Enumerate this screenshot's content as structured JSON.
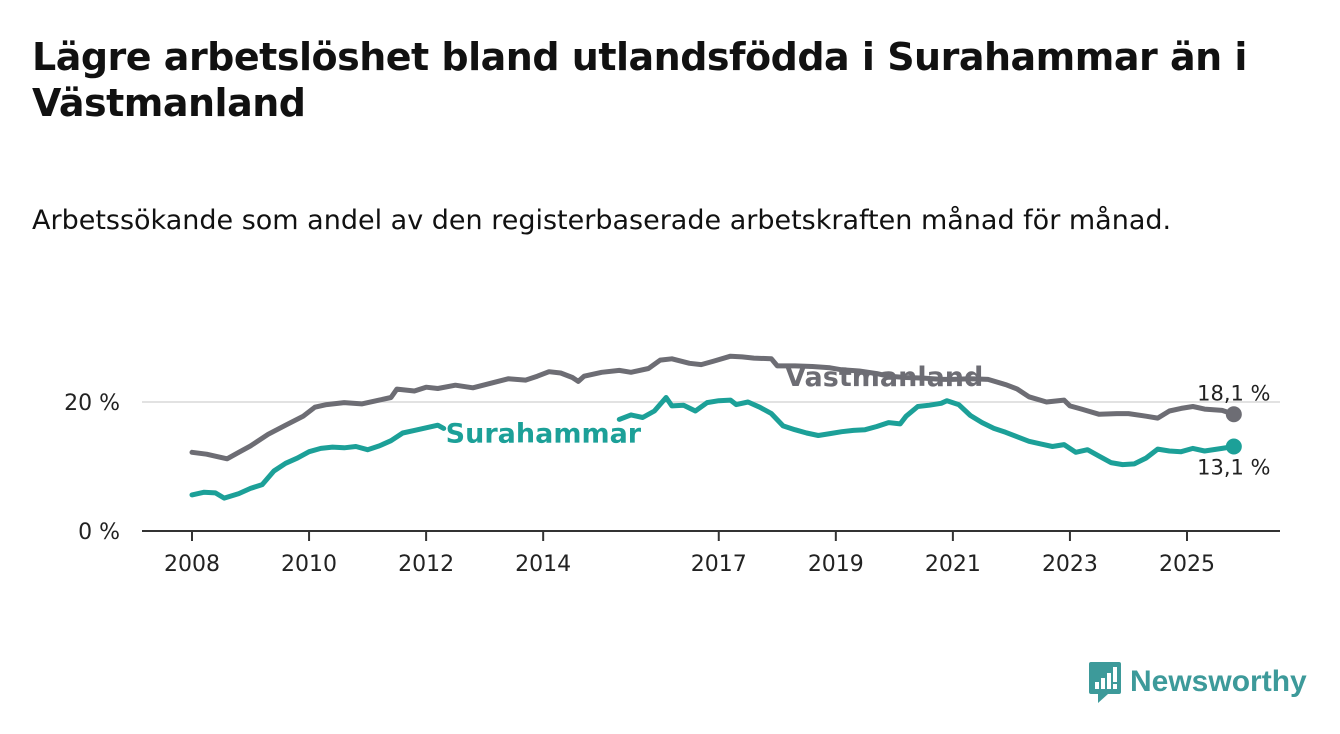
{
  "title": "Lägre arbetslöshet bland utlandsfödda i Surahammar än i Västmanland",
  "subtitle": "Arbetssökande som andel av den registerbaserade arbetskraften månad för månad.",
  "brand": {
    "name": "Newsworthy",
    "color": "#3d9a9a"
  },
  "chart_data": {
    "type": "line",
    "title": "Lägre arbetslöshet bland utlandsfödda i Surahammar än i Västmanland",
    "xlabel": "",
    "ylabel": "",
    "xlim": [
      2007.9,
      2026.5
    ],
    "ylim": [
      0,
      28
    ],
    "x_ticks": [
      {
        "value": 2008,
        "label": "2008"
      },
      {
        "value": 2010,
        "label": "2010"
      },
      {
        "value": 2012,
        "label": "2012"
      },
      {
        "value": 2014,
        "label": "2014"
      },
      {
        "value": 2017,
        "label": "2017"
      },
      {
        "value": 2019,
        "label": "2019"
      },
      {
        "value": 2021,
        "label": "2021"
      },
      {
        "value": 2023,
        "label": "2023"
      },
      {
        "value": 2025,
        "label": "2025"
      }
    ],
    "y_ticks": [
      {
        "value": 0,
        "label": "0 %"
      },
      {
        "value": 20,
        "label": "20 %"
      }
    ],
    "grid": true,
    "series": [
      {
        "name": "Västmanland",
        "color": "#6d6d74",
        "end_label": "18,1 %",
        "points": [
          [
            2008.0,
            12.2
          ],
          [
            2008.25,
            11.9
          ],
          [
            2008.4,
            11.6
          ],
          [
            2008.6,
            11.2
          ],
          [
            2008.8,
            12.2
          ],
          [
            2009.0,
            13.2
          ],
          [
            2009.3,
            15.0
          ],
          [
            2009.6,
            16.4
          ],
          [
            2009.9,
            17.8
          ],
          [
            2010.1,
            19.2
          ],
          [
            2010.3,
            19.6
          ],
          [
            2010.6,
            19.9
          ],
          [
            2010.9,
            19.7
          ],
          [
            2011.2,
            20.3
          ],
          [
            2011.4,
            20.7
          ],
          [
            2011.5,
            22.0
          ],
          [
            2011.8,
            21.7
          ],
          [
            2012.0,
            22.3
          ],
          [
            2012.2,
            22.1
          ],
          [
            2012.5,
            22.6
          ],
          [
            2012.8,
            22.2
          ],
          [
            2013.1,
            22.9
          ],
          [
            2013.4,
            23.6
          ],
          [
            2013.7,
            23.4
          ],
          [
            2013.9,
            24.0
          ],
          [
            2014.1,
            24.7
          ],
          [
            2014.3,
            24.5
          ],
          [
            2014.5,
            23.8
          ],
          [
            2014.6,
            23.2
          ],
          [
            2014.7,
            24.0
          ],
          [
            2015.0,
            24.6
          ],
          [
            2015.3,
            24.9
          ],
          [
            2015.5,
            24.6
          ],
          [
            2015.8,
            25.2
          ],
          [
            2016.0,
            26.5
          ],
          [
            2016.2,
            26.7
          ],
          [
            2016.5,
            26.0
          ],
          [
            2016.7,
            25.8
          ],
          [
            2016.9,
            26.3
          ],
          [
            2017.2,
            27.1
          ],
          [
            2017.4,
            27.0
          ],
          [
            2017.6,
            26.8
          ],
          [
            2017.9,
            26.7
          ],
          [
            2018.0,
            25.6
          ],
          [
            2018.3,
            25.6
          ],
          [
            2018.6,
            25.5
          ],
          [
            2018.9,
            25.3
          ],
          [
            2019.1,
            25.0
          ],
          [
            2019.4,
            24.8
          ],
          [
            2019.7,
            24.4
          ],
          [
            2019.9,
            24.0
          ],
          [
            2020.2,
            23.8
          ],
          [
            2020.5,
            23.7
          ],
          [
            2020.8,
            23.5
          ],
          [
            2021.0,
            23.5
          ],
          [
            2021.3,
            23.6
          ],
          [
            2021.6,
            23.5
          ],
          [
            2021.9,
            22.7
          ],
          [
            2022.1,
            22.0
          ],
          [
            2022.3,
            20.8
          ],
          [
            2022.6,
            20.0
          ],
          [
            2022.9,
            20.3
          ],
          [
            2023.0,
            19.4
          ],
          [
            2023.2,
            18.9
          ],
          [
            2023.5,
            18.1
          ],
          [
            2023.8,
            18.2
          ],
          [
            2024.0,
            18.2
          ],
          [
            2024.3,
            17.8
          ],
          [
            2024.5,
            17.5
          ],
          [
            2024.7,
            18.6
          ],
          [
            2024.9,
            19.0
          ],
          [
            2025.1,
            19.3
          ],
          [
            2025.3,
            18.9
          ],
          [
            2025.6,
            18.7
          ],
          [
            2025.8,
            18.1
          ]
        ]
      },
      {
        "name": "Surahammar",
        "color": "#1ca098",
        "end_label": "13,1 %",
        "points": [
          [
            2008.0,
            5.6
          ],
          [
            2008.2,
            6.0
          ],
          [
            2008.4,
            5.9
          ],
          [
            2008.55,
            5.1
          ],
          [
            2008.8,
            5.8
          ],
          [
            2009.0,
            6.6
          ],
          [
            2009.2,
            7.2
          ],
          [
            2009.4,
            9.3
          ],
          [
            2009.6,
            10.5
          ],
          [
            2009.8,
            11.3
          ],
          [
            2010.0,
            12.3
          ],
          [
            2010.2,
            12.8
          ],
          [
            2010.4,
            13.0
          ],
          [
            2010.6,
            12.9
          ],
          [
            2010.8,
            13.1
          ],
          [
            2011.0,
            12.6
          ],
          [
            2011.2,
            13.2
          ],
          [
            2011.4,
            14.0
          ],
          [
            2011.6,
            15.2
          ],
          [
            2011.8,
            15.6
          ],
          [
            2012.0,
            16.0
          ],
          [
            2012.2,
            16.4
          ],
          [
            2012.3,
            15.9
          ],
          [
            2015.3,
            17.3
          ],
          [
            2015.5,
            18.0
          ],
          [
            2015.7,
            17.6
          ],
          [
            2015.9,
            18.6
          ],
          [
            2016.1,
            20.7
          ],
          [
            2016.2,
            19.4
          ],
          [
            2016.4,
            19.5
          ],
          [
            2016.6,
            18.6
          ],
          [
            2016.8,
            19.9
          ],
          [
            2017.0,
            20.2
          ],
          [
            2017.2,
            20.3
          ],
          [
            2017.3,
            19.6
          ],
          [
            2017.5,
            20.0
          ],
          [
            2017.7,
            19.2
          ],
          [
            2017.9,
            18.2
          ],
          [
            2018.1,
            16.3
          ],
          [
            2018.3,
            15.7
          ],
          [
            2018.5,
            15.2
          ],
          [
            2018.7,
            14.8
          ],
          [
            2018.9,
            15.1
          ],
          [
            2019.1,
            15.4
          ],
          [
            2019.3,
            15.6
          ],
          [
            2019.5,
            15.7
          ],
          [
            2019.7,
            16.2
          ],
          [
            2019.9,
            16.8
          ],
          [
            2020.1,
            16.6
          ],
          [
            2020.2,
            17.8
          ],
          [
            2020.4,
            19.3
          ],
          [
            2020.6,
            19.5
          ],
          [
            2020.8,
            19.8
          ],
          [
            2020.9,
            20.2
          ],
          [
            2021.1,
            19.6
          ],
          [
            2021.3,
            17.9
          ],
          [
            2021.5,
            16.8
          ],
          [
            2021.7,
            15.9
          ],
          [
            2021.9,
            15.3
          ],
          [
            2022.1,
            14.6
          ],
          [
            2022.3,
            13.9
          ],
          [
            2022.5,
            13.5
          ],
          [
            2022.7,
            13.1
          ],
          [
            2022.9,
            13.4
          ],
          [
            2023.1,
            12.2
          ],
          [
            2023.3,
            12.6
          ],
          [
            2023.5,
            11.6
          ],
          [
            2023.7,
            10.6
          ],
          [
            2023.9,
            10.3
          ],
          [
            2024.1,
            10.4
          ],
          [
            2024.3,
            11.3
          ],
          [
            2024.5,
            12.7
          ],
          [
            2024.7,
            12.4
          ],
          [
            2024.9,
            12.3
          ],
          [
            2025.1,
            12.8
          ],
          [
            2025.3,
            12.4
          ],
          [
            2025.6,
            12.8
          ],
          [
            2025.8,
            13.1
          ]
        ]
      }
    ],
    "annotations": [
      {
        "text": "Västmanland",
        "series": "Västmanland",
        "at_x": 2018.1,
        "at_y": 24.0
      },
      {
        "text": "Surahammar",
        "series": "Surahammar",
        "at_x": 2012.3,
        "at_y": 15.3
      }
    ]
  }
}
